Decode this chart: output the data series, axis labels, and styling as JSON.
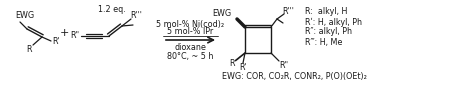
{
  "bg_color": "#ffffff",
  "figsize": [
    4.74,
    0.92
  ],
  "dpi": 100,
  "conditions_line1": "5 mol-% Ni(cod)₂",
  "conditions_line2": "5 mol-% IPr",
  "conditions_line3": "dioxane",
  "conditions_line4": "80°C, ~ 5 h",
  "eq_label": "1.2 eq.",
  "r_line1": "R:  alkyl, H",
  "r_line2": "Rʹ: H, alkyl, Ph",
  "r_line3": "R″: alkyl, Ph",
  "r_line4": "R‴: H, Me",
  "ewg_label": "EWG: COR, CO₂R, CONR₂, P(O)(OEt)₂",
  "font_size_small": 5.8,
  "text_color": "#1a1a1a"
}
